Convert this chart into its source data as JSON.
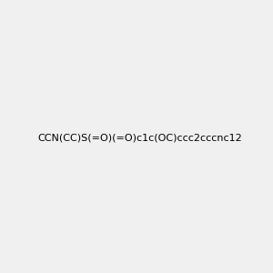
{
  "smiles": "CCN(CC)S(=O)(=O)c1c(OC)ccc2cccnc12",
  "image_size": 300,
  "background_color": "#f0f0f0",
  "bond_color": "#2f6f6f",
  "atom_colors": {
    "N": "#0000ff",
    "O": "#ff0000",
    "S": "#cccc00"
  },
  "title": "",
  "dpi": 100
}
